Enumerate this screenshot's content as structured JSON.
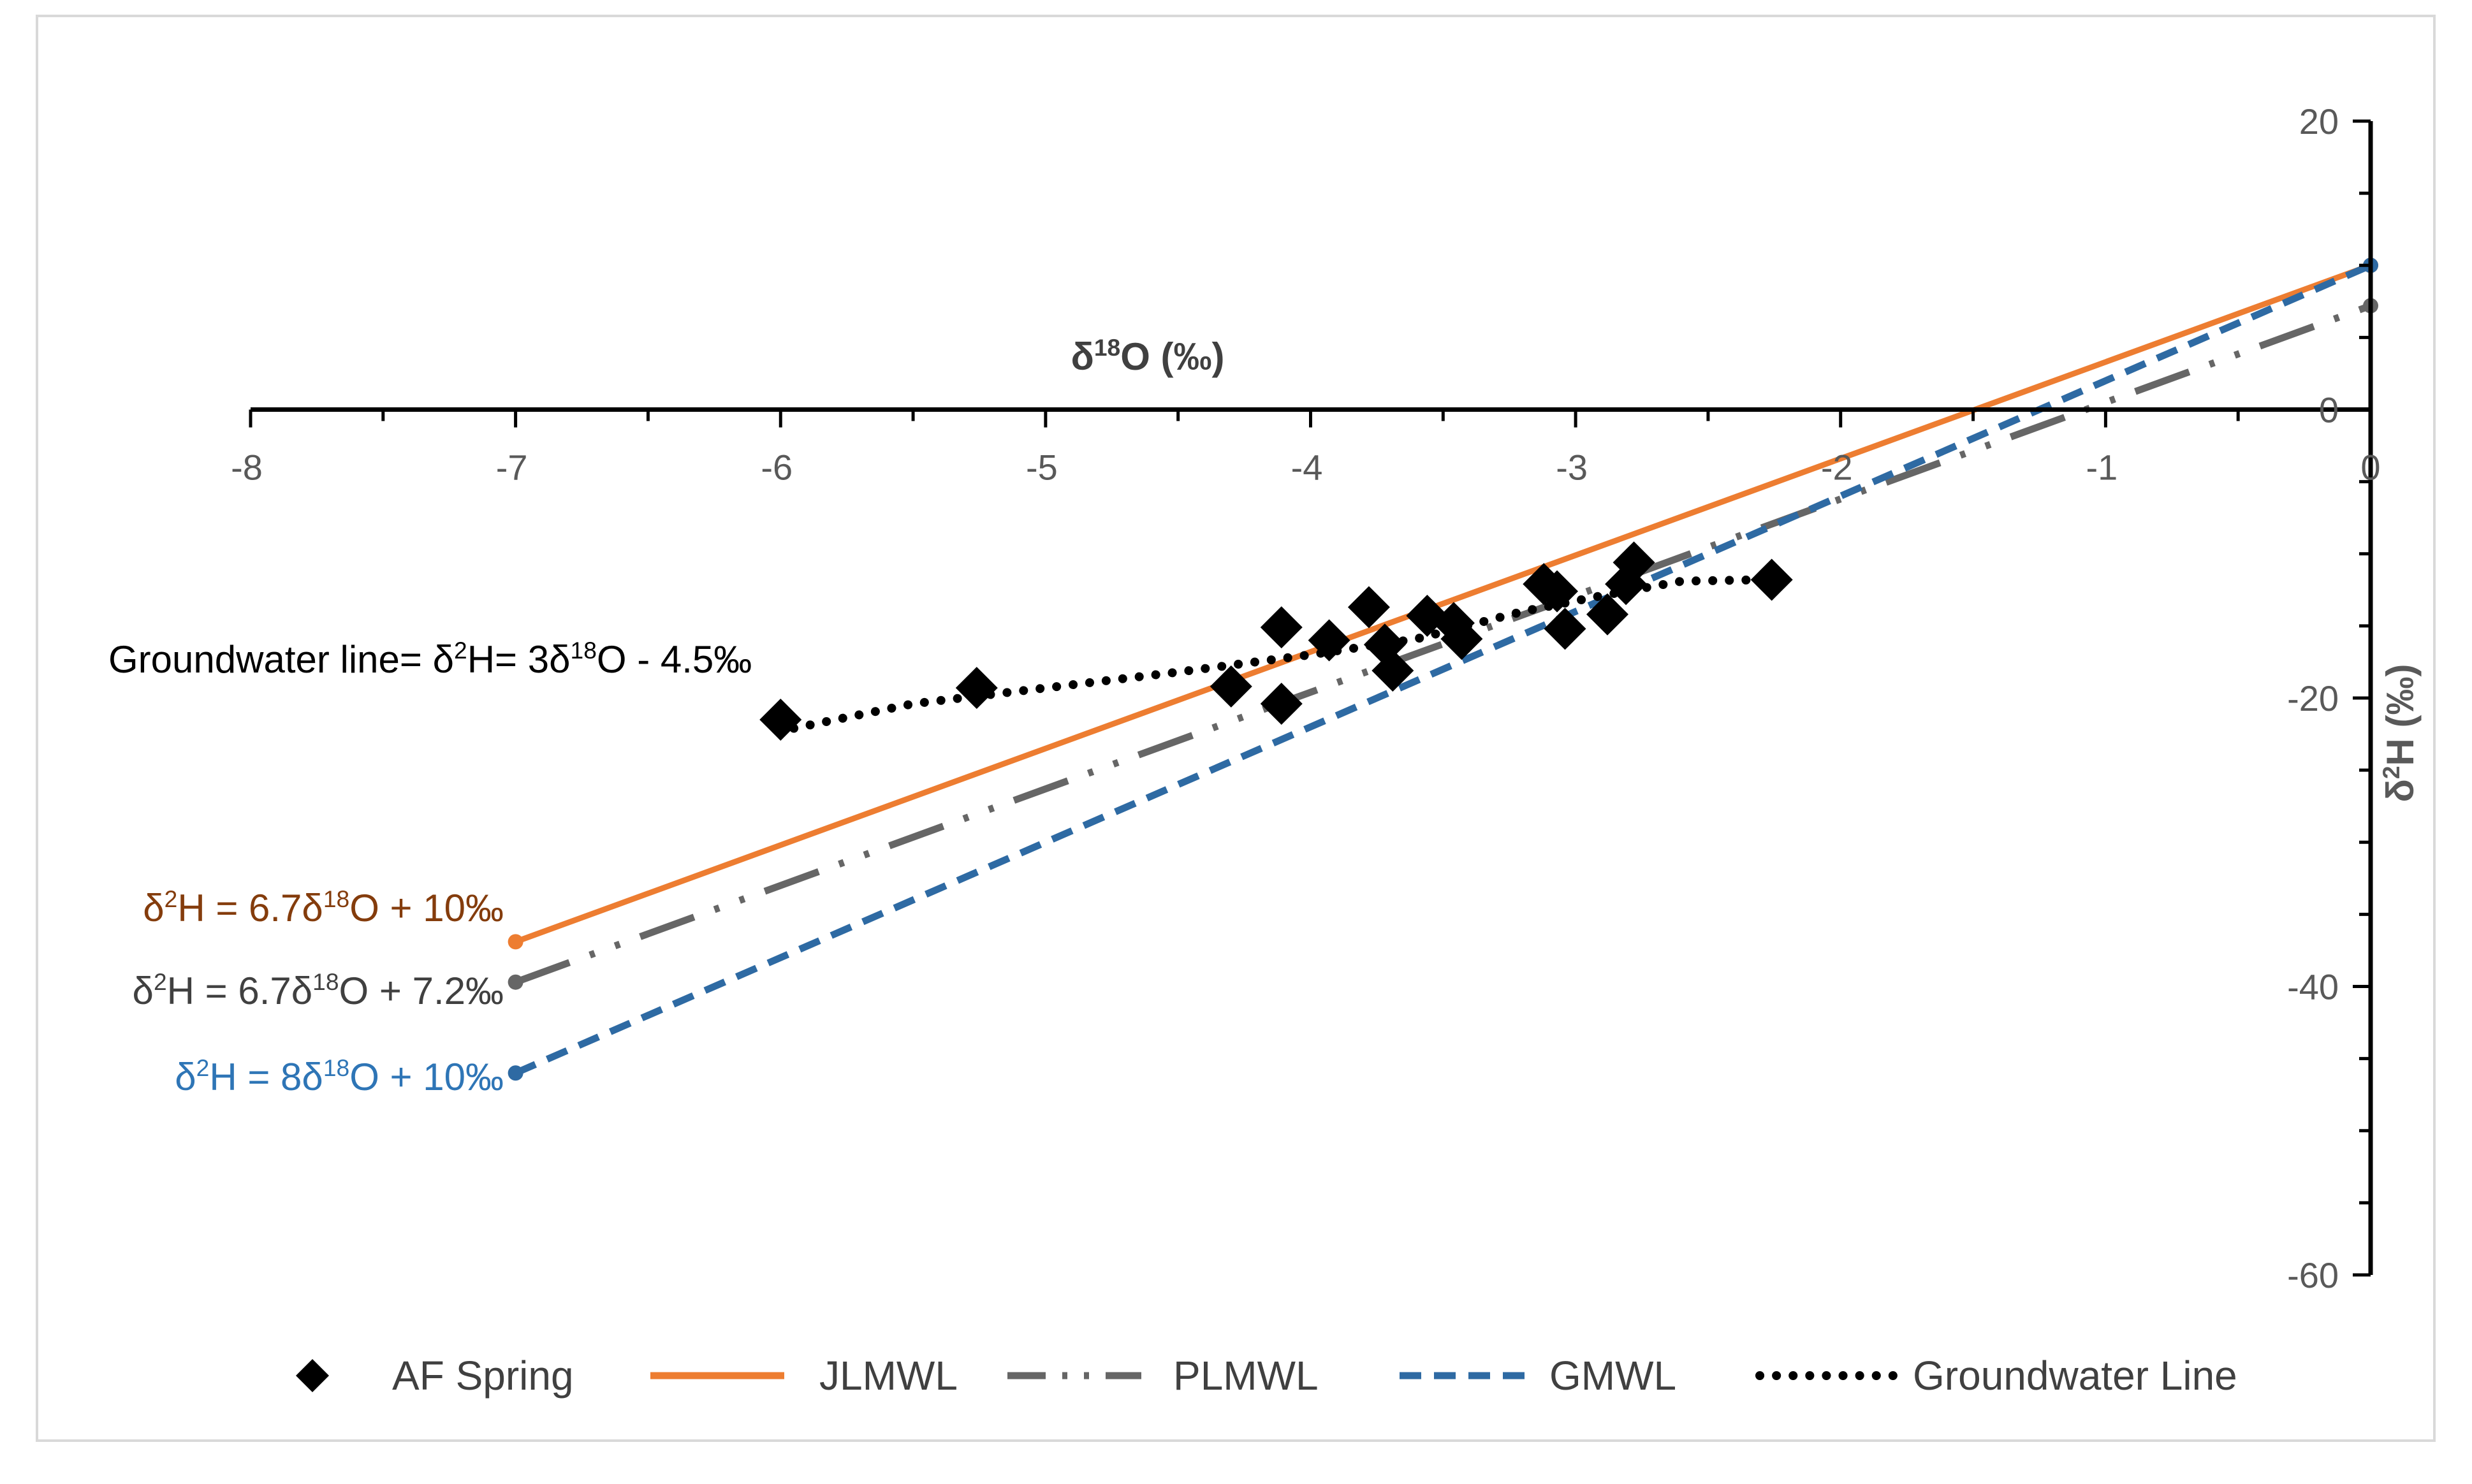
{
  "chart_data": {
    "type": "scatter",
    "x_axis": {
      "label": "δ18O (‰)",
      "min": -8,
      "max": 0,
      "ticks": [
        "-8",
        "-7",
        "-6",
        "-5",
        "-4",
        "-3",
        "-2",
        "-1",
        "0"
      ]
    },
    "y_axis": {
      "label": "δ2H (‰)",
      "min": -60,
      "max": 20,
      "ticks": [
        "20",
        "0",
        "-20",
        "-40",
        "-60"
      ]
    },
    "series": [
      {
        "name": "AF Spring",
        "kind": "scatter",
        "marker": "diamond",
        "color": "#000000",
        "points": [
          {
            "x": -6.0,
            "y": -21.5
          },
          {
            "x": -5.26,
            "y": -19.3
          },
          {
            "x": -4.3,
            "y": -19.2
          },
          {
            "x": -4.11,
            "y": -15.1
          },
          {
            "x": -4.11,
            "y": -20.4
          },
          {
            "x": -3.93,
            "y": -16.0
          },
          {
            "x": -3.78,
            "y": -13.7
          },
          {
            "x": -3.72,
            "y": -16.3
          },
          {
            "x": -3.69,
            "y": -18.1
          },
          {
            "x": -3.56,
            "y": -14.3
          },
          {
            "x": -3.46,
            "y": -14.8
          },
          {
            "x": -3.43,
            "y": -15.9
          },
          {
            "x": -3.12,
            "y": -12.1
          },
          {
            "x": -3.07,
            "y": -12.6
          },
          {
            "x": -3.04,
            "y": -15.2
          },
          {
            "x": -2.88,
            "y": -14.2
          },
          {
            "x": -2.81,
            "y": -12.1
          },
          {
            "x": -2.78,
            "y": -10.6
          },
          {
            "x": -2.26,
            "y": -11.8
          }
        ]
      },
      {
        "name": "JLMWL",
        "kind": "line",
        "style": "solid",
        "color": "#ED7D31",
        "slope": 6.7,
        "intercept": 10,
        "x_range": [
          -7,
          0
        ]
      },
      {
        "name": "PLMWL",
        "kind": "line",
        "style": "dash-dot-dot",
        "color": "#666666",
        "slope": 6.7,
        "intercept": 7.2,
        "x_range": [
          -7,
          0
        ]
      },
      {
        "name": "GMWL",
        "kind": "line",
        "style": "dashed",
        "color": "#2E6AA3",
        "slope": 8,
        "intercept": 10,
        "x_range": [
          -7,
          0
        ]
      },
      {
        "name": "Groundwater Line",
        "kind": "line",
        "style": "dotted",
        "color": "#000000",
        "points": [
          {
            "x": -5.95,
            "y": -22.1
          },
          {
            "x": -5.5,
            "y": -20.4
          },
          {
            "x": -5.0,
            "y": -19.3
          },
          {
            "x": -4.5,
            "y": -18.2
          },
          {
            "x": -4.0,
            "y": -17.0
          },
          {
            "x": -3.6,
            "y": -15.9
          },
          {
            "x": -3.2,
            "y": -14.0
          },
          {
            "x": -2.9,
            "y": -12.9
          },
          {
            "x": -2.6,
            "y": -11.9
          },
          {
            "x": -2.3,
            "y": -11.8
          }
        ]
      }
    ],
    "annotations": [
      {
        "id": "gw",
        "text": "Groundwater line= δ2H= 3δ18O - 4.5‰",
        "color": "#000000"
      },
      {
        "id": "jl",
        "text": "δ2H = 6.7δ18O + 10‰",
        "color": "#843C0C"
      },
      {
        "id": "pl",
        "text": "δ2H = 6.7δ18O + 7.2‰",
        "color": "#404040"
      },
      {
        "id": "gm",
        "text": "δ2H = 8δ18O + 10‰",
        "color": "#2E75B6"
      }
    ],
    "legend": {
      "placement": "bottom",
      "entries": [
        "AF Spring",
        "JLMWL",
        "PLMWL",
        "GMWL",
        "Groundwater Line"
      ]
    }
  }
}
